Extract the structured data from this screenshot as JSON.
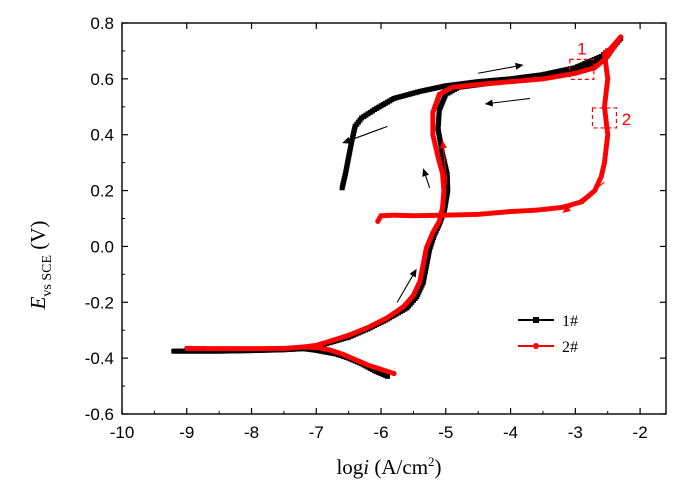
{
  "chart_data": {
    "type": "line",
    "title": "",
    "xlabel_main": "log",
    "xlabel_italic": "i",
    "xlabel_unit_pre": " (A/cm",
    "xlabel_unit_sup": "2",
    "xlabel_unit_post": ")",
    "ylabel_italic": "E",
    "ylabel_sub": "vs SCE",
    "ylabel_unit": " (V)",
    "xlim": [
      -10,
      -1.6
    ],
    "ylim": [
      -0.6,
      0.8
    ],
    "xticks": [
      "-10",
      "-9",
      "-8",
      "-7",
      "-6",
      "-5",
      "-4",
      "-3",
      "-2"
    ],
    "yticks": [
      "-0.6",
      "-0.4",
      "-0.2",
      "0.0",
      "0.2",
      "0.4",
      "0.6",
      "0.8"
    ],
    "grid": false,
    "legend_position": "lower-right",
    "series": [
      {
        "name": "1#",
        "color": "#000000",
        "marker": "square",
        "forward": [
          [
            -9.2,
            -0.375
          ],
          [
            -8.5,
            -0.375
          ],
          [
            -8.0,
            -0.373
          ],
          [
            -7.5,
            -0.37
          ],
          [
            -7.2,
            -0.366
          ],
          [
            -7.0,
            -0.36
          ],
          [
            -6.8,
            -0.345
          ],
          [
            -6.5,
            -0.325
          ],
          [
            -6.2,
            -0.295
          ],
          [
            -5.9,
            -0.26
          ],
          [
            -5.6,
            -0.22
          ],
          [
            -5.45,
            -0.18
          ],
          [
            -5.35,
            -0.13
          ],
          [
            -5.3,
            -0.07
          ],
          [
            -5.25,
            -0.01
          ],
          [
            -5.18,
            0.04
          ],
          [
            -5.1,
            0.08
          ],
          [
            -5.02,
            0.13
          ],
          [
            -4.97,
            0.2
          ],
          [
            -4.98,
            0.26
          ],
          [
            -5.05,
            0.33
          ],
          [
            -5.12,
            0.42
          ],
          [
            -5.1,
            0.49
          ],
          [
            -5.0,
            0.545
          ],
          [
            -4.8,
            0.57
          ],
          [
            -4.3,
            0.585
          ],
          [
            -4.0,
            0.595
          ],
          [
            -3.5,
            0.605
          ],
          [
            -3.0,
            0.625
          ],
          [
            -2.7,
            0.65
          ],
          [
            -2.5,
            0.69
          ],
          [
            -2.3,
            0.745
          ]
        ],
        "reverse": [
          [
            -2.5,
            0.7
          ],
          [
            -2.6,
            0.68
          ],
          [
            -3.0,
            0.64
          ],
          [
            -3.5,
            0.615
          ],
          [
            -4.0,
            0.6
          ],
          [
            -4.5,
            0.59
          ],
          [
            -5.0,
            0.575
          ],
          [
            -5.4,
            0.555
          ],
          [
            -5.8,
            0.53
          ],
          [
            -6.1,
            0.49
          ],
          [
            -6.3,
            0.46
          ],
          [
            -6.4,
            0.43
          ],
          [
            -6.45,
            0.38
          ],
          [
            -6.5,
            0.32
          ],
          [
            -6.55,
            0.26
          ],
          [
            -6.6,
            0.21
          ]
        ],
        "cathodic": [
          [
            -7.2,
            -0.366
          ],
          [
            -7.0,
            -0.372
          ],
          [
            -6.7,
            -0.385
          ],
          [
            -6.5,
            -0.4
          ],
          [
            -6.3,
            -0.42
          ],
          [
            -6.1,
            -0.445
          ],
          [
            -5.9,
            -0.465
          ]
        ]
      },
      {
        "name": "2#",
        "color": "#ff0000",
        "marker": "circle",
        "forward": [
          [
            -9.0,
            -0.365
          ],
          [
            -8.5,
            -0.366
          ],
          [
            -8.0,
            -0.366
          ],
          [
            -7.5,
            -0.365
          ],
          [
            -7.2,
            -0.36
          ],
          [
            -7.0,
            -0.354
          ],
          [
            -6.8,
            -0.34
          ],
          [
            -6.5,
            -0.318
          ],
          [
            -6.2,
            -0.29
          ],
          [
            -5.9,
            -0.255
          ],
          [
            -5.65,
            -0.215
          ],
          [
            -5.5,
            -0.175
          ],
          [
            -5.4,
            -0.125
          ],
          [
            -5.35,
            -0.065
          ],
          [
            -5.3,
            -0.005
          ],
          [
            -5.2,
            0.05
          ],
          [
            -5.1,
            0.09
          ],
          [
            -5.05,
            0.14
          ],
          [
            -5.03,
            0.2
          ],
          [
            -5.05,
            0.26
          ],
          [
            -5.12,
            0.32
          ],
          [
            -5.2,
            0.4
          ],
          [
            -5.2,
            0.48
          ],
          [
            -5.1,
            0.545
          ],
          [
            -4.9,
            0.57
          ],
          [
            -4.5,
            0.58
          ],
          [
            -4.0,
            0.59
          ],
          [
            -3.5,
            0.6
          ],
          [
            -3.0,
            0.62
          ],
          [
            -2.7,
            0.64
          ],
          [
            -2.5,
            0.68
          ],
          [
            -2.3,
            0.75
          ]
        ],
        "reverse": [
          [
            -2.3,
            0.75
          ],
          [
            -2.45,
            0.71
          ],
          [
            -2.55,
            0.69
          ],
          [
            -2.5,
            0.6
          ],
          [
            -2.55,
            0.5
          ],
          [
            -2.5,
            0.4
          ],
          [
            -2.55,
            0.3
          ],
          [
            -2.6,
            0.25
          ],
          [
            -2.7,
            0.2
          ],
          [
            -2.9,
            0.16
          ],
          [
            -3.2,
            0.14
          ],
          [
            -3.6,
            0.13
          ],
          [
            -4.0,
            0.125
          ],
          [
            -4.5,
            0.115
          ],
          [
            -5.0,
            0.112
          ],
          [
            -5.5,
            0.11
          ],
          [
            -5.8,
            0.112
          ],
          [
            -6.0,
            0.11
          ],
          [
            -6.05,
            0.09
          ]
        ],
        "cathodic": [
          [
            -7.2,
            -0.36
          ],
          [
            -7.0,
            -0.362
          ],
          [
            -6.8,
            -0.37
          ],
          [
            -6.6,
            -0.385
          ],
          [
            -6.4,
            -0.405
          ],
          [
            -6.2,
            -0.425
          ],
          [
            -6.0,
            -0.44
          ],
          [
            -5.8,
            -0.455
          ]
        ]
      }
    ],
    "annotations": [
      {
        "label": "1",
        "color": "#ff0000",
        "x": -2.9,
        "y": 0.634
      },
      {
        "label": "2",
        "color": "#ff0000",
        "x": -2.55,
        "y": 0.46
      }
    ],
    "arrows": [
      {
        "color": "#000000",
        "from": [
          -4.5,
          0.62
        ],
        "to": [
          -3.8,
          0.65
        ]
      },
      {
        "color": "#000000",
        "from": [
          -3.7,
          0.53
        ],
        "to": [
          -4.4,
          0.51
        ]
      },
      {
        "color": "#000000",
        "from": [
          -5.9,
          0.43
        ],
        "to": [
          -6.6,
          0.37
        ]
      },
      {
        "color": "#000000",
        "from": [
          -5.25,
          0.21
        ],
        "to": [
          -5.35,
          0.28
        ]
      },
      {
        "color": "#000000",
        "from": [
          -5.75,
          -0.2
        ],
        "to": [
          -5.45,
          -0.08
        ]
      },
      {
        "color": "#ff0000",
        "from": [
          -4.98,
          0.22
        ],
        "to": [
          -5.05,
          0.38
        ]
      },
      {
        "color": "#ff0000",
        "from": [
          -2.55,
          0.23
        ],
        "to": [
          -3.2,
          0.12
        ]
      }
    ]
  }
}
